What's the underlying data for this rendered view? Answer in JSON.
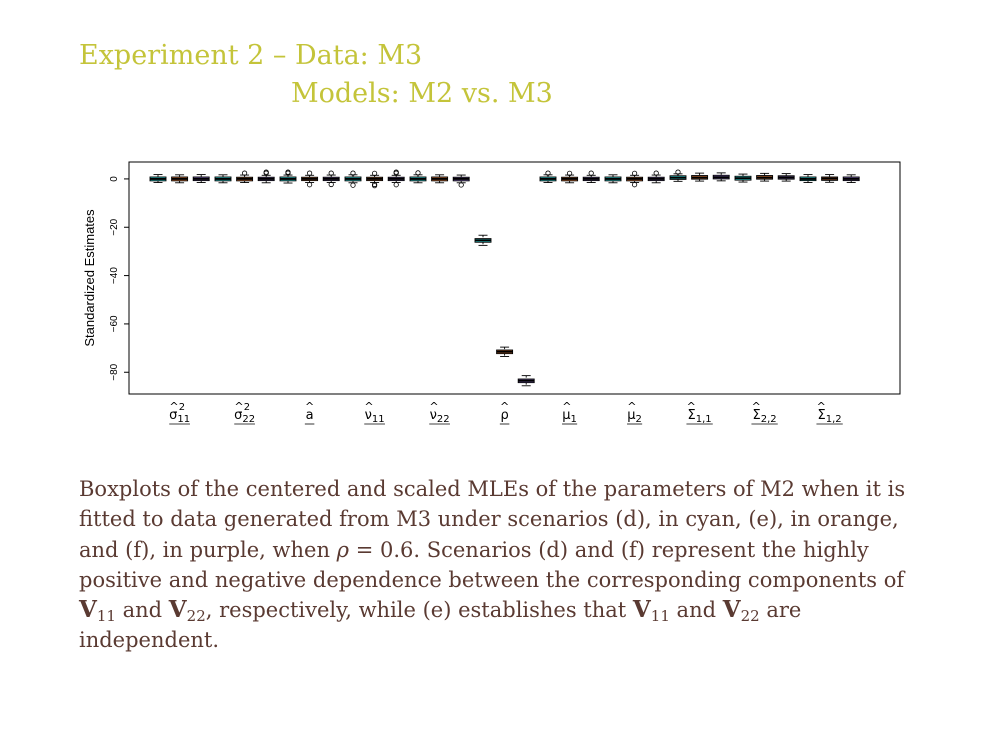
{
  "slide": {
    "title_line1": "Experiment 2 – Data: M3",
    "title_line2": "Models: M2 vs. M3",
    "title_color": "#c4c43a",
    "text_color": "#5a3a32"
  },
  "caption": {
    "p1": "Boxplots of the centered and scaled MLEs of the parameters of M2 when it is fitted to data generated from M3 under scenarios (d), in cyan, (e), in orange, and (f), in purple, when ",
    "rho": "ρ",
    "p2": " = 0.6. Scenarios (d) and (f) represent the highly positive and negative dependence between the corresponding components of ",
    "v": "V",
    "sub11": "11",
    "and": " and ",
    "sub22": "22",
    "p3": ", respectively, while (e) establishes that ",
    "p4": " are independent."
  },
  "chart_data": {
    "type": "boxplot",
    "ylabel": "Standardized Estimates",
    "ylim": [
      -89,
      7
    ],
    "yticks": [
      0,
      -20,
      -40,
      -60,
      -80
    ],
    "yticklabels": [
      "0",
      "−20",
      "−40",
      "−60",
      "−80"
    ],
    "grid": false,
    "legend": "none",
    "series": [
      {
        "name": "(d)",
        "color": "#34e0e0"
      },
      {
        "name": "(e)",
        "color": "#e07a3a"
      },
      {
        "name": "(f)",
        "color": "#8a6ec6"
      }
    ],
    "groups": [
      {
        "base": "σ",
        "hat": "^",
        "sup": "2",
        "sub": "11"
      },
      {
        "base": "σ",
        "hat": "^",
        "sup": "2",
        "sub": "22"
      },
      {
        "base": "a",
        "hat": "^",
        "sup": "",
        "sub": ""
      },
      {
        "base": "ν",
        "hat": "^",
        "sup": "",
        "sub": "11"
      },
      {
        "base": "ν",
        "hat": "^",
        "sup": "",
        "sub": "22"
      },
      {
        "base": "ρ",
        "hat": "^",
        "sup": "",
        "sub": ""
      },
      {
        "base": "μ",
        "hat": "^",
        "sup": "",
        "sub": "1"
      },
      {
        "base": "μ",
        "hat": "^",
        "sup": "",
        "sub": "2"
      },
      {
        "base": "Σ",
        "hat": "^",
        "sup": "",
        "sub": "1,1"
      },
      {
        "base": "Σ",
        "hat": "^",
        "sup": "",
        "sub": "2,2"
      },
      {
        "base": "Σ",
        "hat": "^",
        "sup": "",
        "sub": "1,2"
      }
    ],
    "boxes": [
      {
        "group": 0,
        "series": 0,
        "min": -1.5,
        "q1": -0.8,
        "median": 0,
        "q3": 0.8,
        "max": 1.8,
        "outliers": []
      },
      {
        "group": 0,
        "series": 1,
        "min": -1.6,
        "q1": -0.8,
        "median": 0,
        "q3": 0.8,
        "max": 1.7,
        "outliers": []
      },
      {
        "group": 0,
        "series": 2,
        "min": -1.5,
        "q1": -0.7,
        "median": 0,
        "q3": 0.8,
        "max": 1.8,
        "outliers": []
      },
      {
        "group": 1,
        "series": 0,
        "min": -1.6,
        "q1": -0.8,
        "median": 0,
        "q3": 0.8,
        "max": 1.7,
        "outliers": []
      },
      {
        "group": 1,
        "series": 1,
        "min": -1.5,
        "q1": -0.8,
        "median": 0,
        "q3": 0.7,
        "max": 1.6,
        "outliers": [
          2.4
        ]
      },
      {
        "group": 1,
        "series": 2,
        "min": -1.6,
        "q1": -0.7,
        "median": 0,
        "q3": 0.7,
        "max": 1.5,
        "outliers": [
          2.4,
          2.8
        ]
      },
      {
        "group": 2,
        "series": 0,
        "min": -1.7,
        "q1": -0.8,
        "median": 0,
        "q3": 0.8,
        "max": 1.6,
        "outliers": [
          2.4,
          2.8
        ]
      },
      {
        "group": 2,
        "series": 1,
        "min": -1.5,
        "q1": -0.7,
        "median": 0,
        "q3": 0.7,
        "max": 1.5,
        "outliers": [
          2.4,
          -2.4
        ]
      },
      {
        "group": 2,
        "series": 2,
        "min": -1.5,
        "q1": -0.7,
        "median": 0,
        "q3": 0.7,
        "max": 1.6,
        "outliers": [
          2.4,
          -2.3
        ]
      },
      {
        "group": 3,
        "series": 0,
        "min": -1.6,
        "q1": -0.8,
        "median": 0,
        "q3": 0.8,
        "max": 1.7,
        "outliers": [
          2.4,
          -2.6
        ]
      },
      {
        "group": 3,
        "series": 1,
        "min": -1.5,
        "q1": -0.7,
        "median": 0,
        "q3": 0.7,
        "max": 1.5,
        "outliers": [
          2.3,
          -2.3,
          -2.8
        ]
      },
      {
        "group": 3,
        "series": 2,
        "min": -1.5,
        "q1": -0.7,
        "median": 0,
        "q3": 0.7,
        "max": 1.5,
        "outliers": [
          2.4,
          2.8,
          -2.4
        ]
      },
      {
        "group": 4,
        "series": 0,
        "min": -1.6,
        "q1": -0.8,
        "median": 0,
        "q3": 0.8,
        "max": 1.7,
        "outliers": [
          2.5
        ]
      },
      {
        "group": 4,
        "series": 1,
        "min": -1.6,
        "q1": -0.8,
        "median": 0,
        "q3": 0.8,
        "max": 1.7,
        "outliers": []
      },
      {
        "group": 4,
        "series": 2,
        "min": -1.6,
        "q1": -0.8,
        "median": 0,
        "q3": 0.7,
        "max": 1.6,
        "outliers": [
          -2.5
        ]
      },
      {
        "group": 5,
        "series": 0,
        "min": -27.5,
        "q1": -26.2,
        "median": -25.4,
        "q3": -24.7,
        "max": -23.3,
        "outliers": []
      },
      {
        "group": 5,
        "series": 1,
        "min": -73.5,
        "q1": -72.3,
        "median": -71.5,
        "q3": -70.8,
        "max": -69.6,
        "outliers": []
      },
      {
        "group": 5,
        "series": 2,
        "min": -85.6,
        "q1": -84.3,
        "median": -83.5,
        "q3": -82.8,
        "max": -81.4,
        "outliers": []
      },
      {
        "group": 6,
        "series": 0,
        "min": -1.5,
        "q1": -0.8,
        "median": 0,
        "q3": 0.8,
        "max": 1.7,
        "outliers": [
          2.4
        ]
      },
      {
        "group": 6,
        "series": 1,
        "min": -1.6,
        "q1": -0.8,
        "median": 0,
        "q3": 0.7,
        "max": 1.6,
        "outliers": [
          2.3
        ]
      },
      {
        "group": 6,
        "series": 2,
        "min": -1.5,
        "q1": -0.7,
        "median": 0,
        "q3": 0.7,
        "max": 1.5,
        "outliers": [
          2.4
        ]
      },
      {
        "group": 7,
        "series": 0,
        "min": -1.6,
        "q1": -0.8,
        "median": 0,
        "q3": 0.8,
        "max": 1.7,
        "outliers": []
      },
      {
        "group": 7,
        "series": 1,
        "min": -1.5,
        "q1": -0.8,
        "median": 0,
        "q3": 0.7,
        "max": 1.5,
        "outliers": [
          2.3,
          -2.4
        ]
      },
      {
        "group": 7,
        "series": 2,
        "min": -1.6,
        "q1": -0.7,
        "median": 0,
        "q3": 0.7,
        "max": 1.6,
        "outliers": [
          2.4
        ]
      },
      {
        "group": 8,
        "series": 0,
        "min": -1.0,
        "q1": -0.2,
        "median": 0.5,
        "q3": 1.3,
        "max": 2.1,
        "outliers": [
          2.8
        ]
      },
      {
        "group": 8,
        "series": 1,
        "min": -0.9,
        "q1": -0.1,
        "median": 0.6,
        "q3": 1.4,
        "max": 2.4,
        "outliers": []
      },
      {
        "group": 8,
        "series": 2,
        "min": -0.8,
        "q1": 0.0,
        "median": 0.7,
        "q3": 1.5,
        "max": 2.5,
        "outliers": []
      },
      {
        "group": 9,
        "series": 0,
        "min": -1.3,
        "q1": -0.5,
        "median": 0.3,
        "q3": 1.1,
        "max": 2.0,
        "outliers": []
      },
      {
        "group": 9,
        "series": 1,
        "min": -0.9,
        "q1": -0.1,
        "median": 0.6,
        "q3": 1.4,
        "max": 2.3,
        "outliers": []
      },
      {
        "group": 9,
        "series": 2,
        "min": -0.9,
        "q1": -0.1,
        "median": 0.6,
        "q3": 1.3,
        "max": 2.2,
        "outliers": []
      },
      {
        "group": 10,
        "series": 0,
        "min": -1.5,
        "q1": -0.7,
        "median": 0,
        "q3": 0.8,
        "max": 1.8,
        "outliers": []
      },
      {
        "group": 10,
        "series": 1,
        "min": -1.4,
        "q1": -0.6,
        "median": 0.1,
        "q3": 0.8,
        "max": 1.8,
        "outliers": []
      },
      {
        "group": 10,
        "series": 2,
        "min": -1.5,
        "q1": -0.7,
        "median": 0,
        "q3": 0.8,
        "max": 1.7,
        "outliers": []
      }
    ]
  }
}
